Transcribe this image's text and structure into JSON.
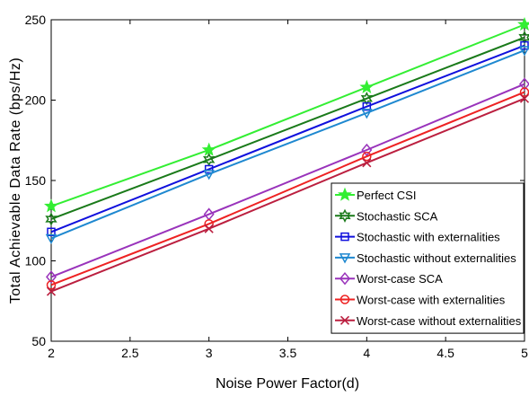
{
  "chart_data": {
    "type": "line",
    "title": "",
    "xlabel": "Noise Power Factor(d)",
    "ylabel": "Total Achievable Data Rate (bps/Hz)",
    "xlim": [
      2,
      5
    ],
    "ylim": [
      50,
      250
    ],
    "xticks": [
      "2",
      "2.5",
      "3",
      "3.5",
      "4",
      "4.5",
      "5"
    ],
    "yticks": [
      "50",
      "100",
      "150",
      "200",
      "250"
    ],
    "grid": false,
    "legend_position": "bottom-right",
    "x": [
      2,
      3,
      4,
      5
    ],
    "series": [
      {
        "name": "Perfect CSI",
        "values": [
          134,
          169,
          208,
          247
        ],
        "color": "#33ee33",
        "marker": "star"
      },
      {
        "name": "Stochastic SCA",
        "values": [
          126,
          163,
          201,
          239
        ],
        "color": "#1a7a1a",
        "marker": "hexagram"
      },
      {
        "name": "Stochastic  with externalities",
        "values": [
          118,
          157,
          196,
          234
        ],
        "color": "#1010dd",
        "marker": "square"
      },
      {
        "name": "Stochastic  without externalities",
        "values": [
          114,
          154,
          192,
          231
        ],
        "color": "#1e88d0",
        "marker": "triangle-down"
      },
      {
        "name": "Worst-case SCA",
        "values": [
          90,
          129,
          169,
          210
        ],
        "color": "#9933bb",
        "marker": "diamond"
      },
      {
        "name": "Worst-case with externalities",
        "values": [
          85,
          123,
          165,
          205
        ],
        "color": "#ee2222",
        "marker": "circle"
      },
      {
        "name": "Worst-case without externalities",
        "values": [
          81,
          120,
          161,
          201
        ],
        "color": "#bb1f3f",
        "marker": "x"
      }
    ]
  }
}
